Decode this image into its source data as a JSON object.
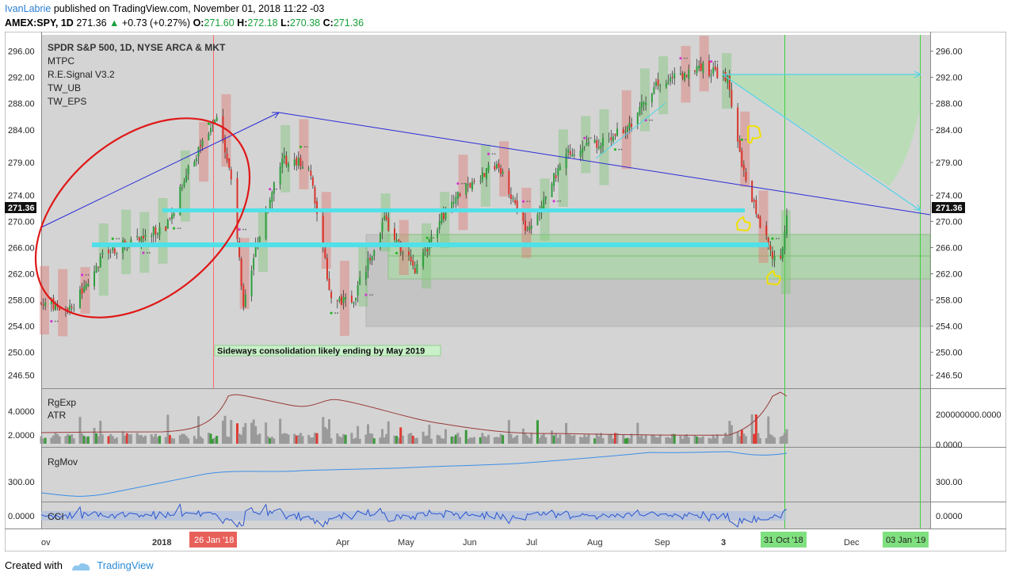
{
  "header": {
    "author": "IvanLabrie",
    "published_text": "published on TradingView.com, November 01, 2018 11:22 -03",
    "symbol": "AMEX:SPY, 1D",
    "last": "271.36",
    "change": "+0.73 (+0.27%)",
    "open_label": "O:",
    "open": "271.60",
    "high_label": "H:",
    "high": "272.18",
    "low_label": "L:",
    "low": "270.38",
    "close_label": "C:",
    "close": "271.36"
  },
  "legend": [
    "SPDR S&P 500, 1D, NYSE ARCA & MKT",
    "MTPC",
    "R.E.Signal V3.2",
    "TW_UB",
    "TW_EPS"
  ],
  "panes": {
    "volume_labels": [
      "RgExp",
      "ATR"
    ],
    "volume_left_ticks": [
      "4.0000",
      "2.0000"
    ],
    "volume_right_ticks": [
      "200000000.0000",
      "0.0000"
    ],
    "mov_label": "RgMov",
    "mov_ticks": [
      "300.00"
    ],
    "cci_label": "CCI",
    "cci_ticks": [
      "0.0000"
    ]
  },
  "annotation": "Sideways consolidation likely ending by May 2019",
  "price_badge": "271.36",
  "time_axis": [
    "ov",
    "2018",
    "26 Jan '18",
    "Apr",
    "May",
    "Jun",
    "Jul",
    "Aug",
    "Sep",
    "3",
    "31 Oct '18",
    "Dec",
    "03 Jan '19"
  ],
  "footer": {
    "created_with": "Created with",
    "brand": "TradingView"
  },
  "colors": {
    "up": "#2e9e3e",
    "down": "#d9342b",
    "price_bg": "#d4d4d4",
    "cyan": "#4fe0e8",
    "annotation_bg": "#c9f0c9"
  },
  "chart_data": {
    "type": "candlestick",
    "x_start": "2017-11-01",
    "x_end": "2018-11-01",
    "ylim": [
      244.5,
      298.5
    ],
    "y_ticks": [
      246.5,
      250.0,
      254.0,
      258.0,
      262.0,
      266.0,
      270.0,
      274.0,
      279.0,
      284.0,
      288.0,
      292.0,
      296.0
    ],
    "last_price": 271.36,
    "close_path": [
      [
        "2017-11-01",
        257.5
      ],
      [
        "2017-11-15",
        256.5
      ],
      [
        "2017-12-01",
        264.5
      ],
      [
        "2017-12-15",
        267.2
      ],
      [
        "2018-01-02",
        269.5
      ],
      [
        "2018-01-12",
        278.0
      ],
      [
        "2018-01-26",
        286.5
      ],
      [
        "2018-02-02",
        276.0
      ],
      [
        "2018-02-08",
        257.6
      ],
      [
        "2018-02-14",
        266.0
      ],
      [
        "2018-02-27",
        279.5
      ],
      [
        "2018-03-09",
        278.9
      ],
      [
        "2018-03-13",
        277.3
      ],
      [
        "2018-03-23",
        258.1
      ],
      [
        "2018-04-02",
        257.5
      ],
      [
        "2018-04-18",
        270.2
      ],
      [
        "2018-05-03",
        262.6
      ],
      [
        "2018-05-21",
        273.4
      ],
      [
        "2018-06-12",
        278.9
      ],
      [
        "2018-06-27",
        268.5
      ],
      [
        "2018-07-16",
        280.5
      ],
      [
        "2018-07-31",
        282.0
      ],
      [
        "2018-08-15",
        284.1
      ],
      [
        "2018-08-29",
        291.3
      ],
      [
        "2018-09-20",
        293.6
      ],
      [
        "2018-10-03",
        291.7
      ],
      [
        "2018-10-10",
        278.0
      ],
      [
        "2018-10-24",
        265.3
      ],
      [
        "2018-10-29",
        263.9
      ],
      [
        "2018-11-01",
        271.4
      ]
    ],
    "support_lines": [
      271.0,
      265.8
    ]
  }
}
